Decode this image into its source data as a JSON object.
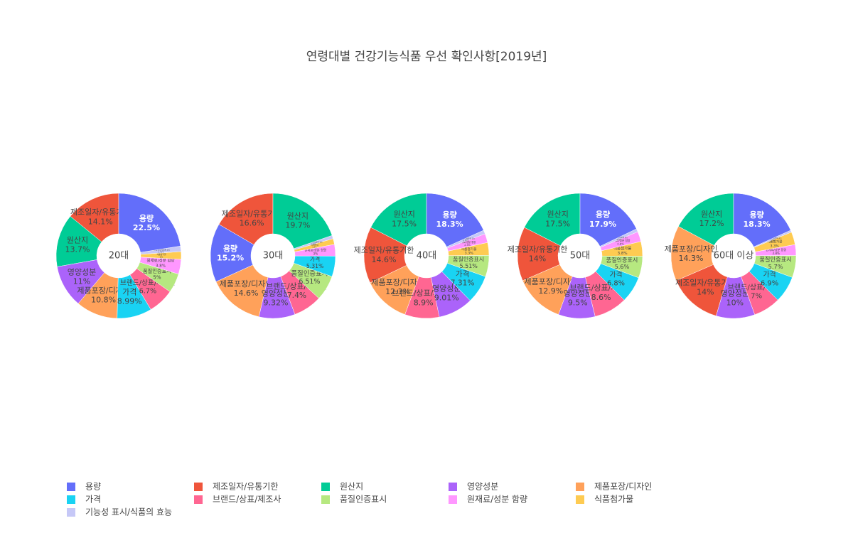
{
  "chart_data": {
    "type": "pie",
    "title": "연령대별 건강기능식품 우선 확인사항[2019년]",
    "categories": [
      "용량",
      "제조일자/유통기한",
      "원산지",
      "영양성분",
      "제품포장/디자인",
      "가격",
      "브랜드/상표/제조사",
      "품질인증표시",
      "원재료/성분 함량",
      "식품첨가물",
      "기능성 표시/식품의 효능"
    ],
    "colors": [
      "#636efa",
      "#EF553B",
      "#00cc96",
      "#ab63fa",
      "#FFA15A",
      "#19d3f3",
      "#FF6692",
      "#B6E880",
      "#FF97FF",
      "#FECB52",
      "#c6c8f7"
    ],
    "pies": [
      {
        "name": "20대",
        "labels": [
          "제조일자/유통기한",
          "원산지",
          "영양성분",
          "제품포장/디자인",
          "가격",
          "브랜드/상표/제조사",
          "품질인증표시",
          "원재료/성분 함량",
          "식품첨가물",
          "기능성 표시/식품의 효능",
          "용량"
        ],
        "values": [
          14.1,
          13.7,
          11,
          10.8,
          8.99,
          6.7,
          5,
          3.8,
          2,
          1.41,
          22.5
        ],
        "value_labels": [
          "14.1%",
          "13.7%",
          "11%",
          "10.8%",
          "8.99%",
          "6.7%",
          "5%",
          "3.8%",
          "2%",
          "1.41%",
          "22.5%"
        ]
      },
      {
        "name": "30대",
        "labels": [
          "제조일자/유통기한",
          "용량",
          "제품포장/디자인",
          "영양성분",
          "브랜드/상표/제조사",
          "품질인증표시",
          "가격",
          "원재료/성분 함량",
          "식품첨가물",
          "기능성 표시/식품의 효능",
          "원산지"
        ],
        "values": [
          16.6,
          15.2,
          14.6,
          9.32,
          7.4,
          6.51,
          5.31,
          3,
          1.5,
          0.86,
          19.7
        ],
        "value_labels": [
          "16.6%",
          "15.2%",
          "14.6%",
          "9.32%",
          "7.4%",
          "6.51%",
          "5.31%",
          "3%",
          "1.5%",
          "0.86%",
          "19.7%"
        ]
      },
      {
        "name": "40대",
        "labels": [
          "원산지",
          "제조일자/유통기한",
          "제품포장/디자인",
          "브랜드/상표/제조사",
          "영양성분",
          "가격",
          "품질인증표시",
          "식품첨가물",
          "원재료/성분 함량",
          "기능성 표시/식품의 효능",
          "용량"
        ],
        "values": [
          17.5,
          14.6,
          12.3,
          8.9,
          9.01,
          7.31,
          5.51,
          3.3,
          2.3,
          0.97,
          18.3
        ],
        "value_labels": [
          "17.5%",
          "14.6%",
          "12.3%",
          "8.9%",
          "9.01%",
          "7.31%",
          "5.51%",
          "3.3%",
          "2.3%",
          "0.97%",
          "18.3%"
        ]
      },
      {
        "name": "50대",
        "labels": [
          "원산지",
          "제조일자/유통기한",
          "제품포장/디자인",
          "영양성분",
          "브랜드/상표/제조사",
          "가격",
          "품질인증표시",
          "식품첨가물",
          "원재료/성분 함량",
          "기능성 표시/식품의 효능",
          "용량"
        ],
        "values": [
          17.5,
          14,
          12.9,
          9.5,
          8.6,
          6.8,
          5.6,
          3.8,
          2.6,
          0.8,
          17.9
        ],
        "value_labels": [
          "17.5%",
          "14%",
          "12.9%",
          "9.5%",
          "8.6%",
          "6.8%",
          "5.6%",
          "3.8%",
          "2.6%",
          "0.8%",
          "17.9%"
        ]
      },
      {
        "name": "60대 이상",
        "labels": [
          "원산지",
          "제품포장/디자인",
          "제조일자/유통기한",
          "영양성분",
          "브랜드/상표/제조사",
          "가격",
          "품질인증표시",
          "원재료/성분 함량",
          "식품첨가물",
          "기능성 표시/식품의 효능",
          "용량"
        ],
        "values": [
          17.2,
          14.3,
          14,
          10,
          7,
          6.9,
          5.7,
          2.8,
          3.3,
          0.5,
          18.3
        ],
        "value_labels": [
          "17.2%",
          "14.3%",
          "14%",
          "10%",
          "7%",
          "6.9%",
          "5.7%",
          "2.8%",
          "3.3%",
          "0.5%",
          "18.3%"
        ]
      }
    ]
  }
}
